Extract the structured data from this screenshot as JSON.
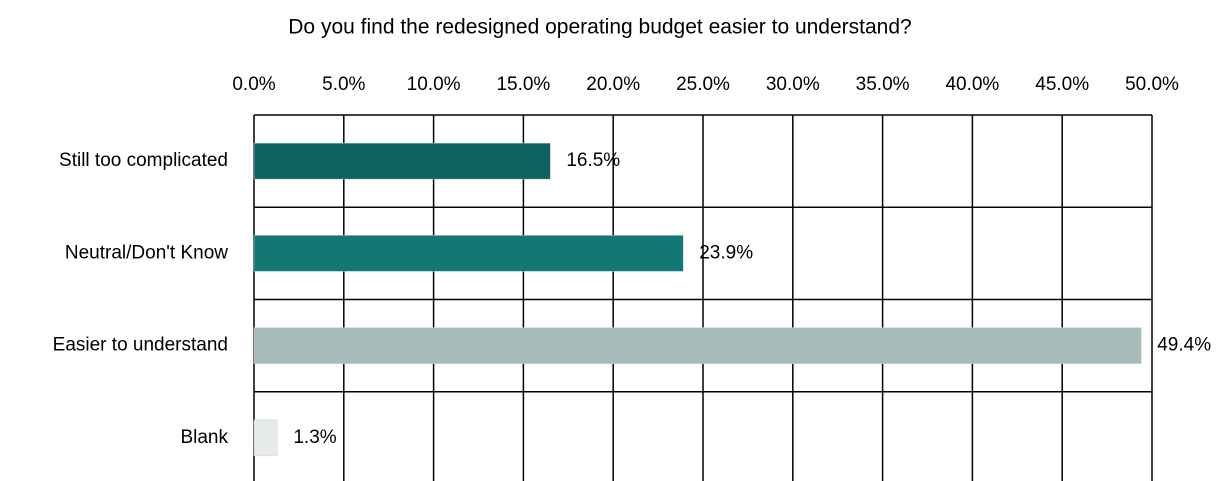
{
  "chart_data": {
    "type": "bar",
    "orientation": "horizontal",
    "title": "Do you find the redesigned operating budget easier to understand?",
    "categories": [
      "Still too complicated",
      "Neutral/Don't Know",
      "Easier to understand",
      "Blank"
    ],
    "values": [
      16.5,
      23.9,
      49.4,
      1.3
    ],
    "value_labels": [
      "16.5%",
      "23.9%",
      "49.4%",
      "1.3%"
    ],
    "colors": [
      "#0f6262",
      "#127874",
      "#a8bbbb",
      "#e6eae9"
    ],
    "xlim": [
      0,
      50
    ],
    "xticks": [
      {
        "value": 0,
        "label": "0.0%"
      },
      {
        "value": 5,
        "label": "5.0%"
      },
      {
        "value": 10,
        "label": "10.0%"
      },
      {
        "value": 15,
        "label": "15.0%"
      },
      {
        "value": 20,
        "label": "20.0%"
      },
      {
        "value": 25,
        "label": "25.0%"
      },
      {
        "value": 30,
        "label": "30.0%"
      },
      {
        "value": 35,
        "label": "35.0%"
      },
      {
        "value": 40,
        "label": "40.0%"
      },
      {
        "value": 45,
        "label": "45.0%"
      },
      {
        "value": 50,
        "label": "50.0%"
      }
    ],
    "grid": true
  }
}
